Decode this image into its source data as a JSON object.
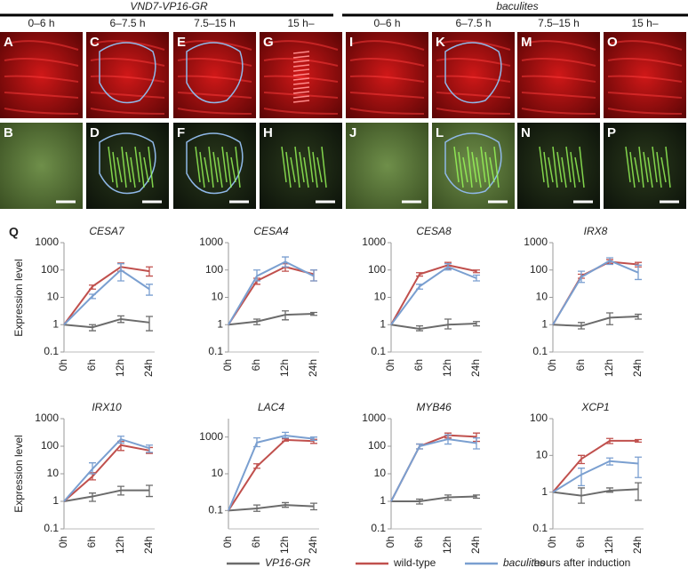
{
  "figure": {
    "groups": [
      "VND7-VP16-GR",
      "baculites"
    ],
    "times": [
      "0–6 h",
      "6–7.5 h",
      "7.5–15 h",
      "15 h–",
      "0–6 h",
      "6–7.5 h",
      "7.5–15 h",
      "15 h–"
    ],
    "top_letters": [
      "A",
      "C",
      "E",
      "G",
      "I",
      "K",
      "M",
      "O"
    ],
    "bottom_letters": [
      "B",
      "D",
      "F",
      "H",
      "J",
      "L",
      "N",
      "P"
    ],
    "q_letter": "Q"
  },
  "chart_data": {
    "type": "line",
    "log_y": true,
    "categories": [
      "0h",
      "6h",
      "12h",
      "24h"
    ],
    "ylabel": "Expression level",
    "xlabel": "hours after induction",
    "series": [
      {
        "name": "VP16-GR",
        "color": "#6b6b6b"
      },
      {
        "name": "wild-type",
        "color": "#c0504d"
      },
      {
        "name": "baculites",
        "color": "#7a9fd0"
      }
    ],
    "panels": [
      {
        "title": "CESA7",
        "ylim": [
          0.1,
          1000
        ],
        "yticks": [
          0.1,
          1,
          10,
          100,
          1000
        ],
        "values": [
          [
            1,
            0.8,
            1.6,
            1.2
          ],
          [
            1,
            25,
            130,
            90
          ],
          [
            1,
            11,
            100,
            20
          ]
        ],
        "lower": [
          [
            null,
            0.6,
            1.2,
            0.6
          ],
          [
            null,
            20,
            90,
            60
          ],
          [
            null,
            9,
            40,
            12
          ]
        ],
        "upper": [
          [
            null,
            1,
            2.1,
            2
          ],
          [
            null,
            28,
            180,
            130
          ],
          [
            null,
            13,
            170,
            30
          ]
        ]
      },
      {
        "title": "CESA4",
        "ylim": [
          0.1,
          1000
        ],
        "yticks": [
          0.1,
          1,
          10,
          100,
          1000
        ],
        "values": [
          [
            1,
            1.3,
            2.3,
            2.5
          ],
          [
            1,
            40,
            130,
            70
          ],
          [
            1,
            60,
            200,
            60
          ]
        ],
        "lower": [
          [
            null,
            1,
            1.5,
            2.2
          ],
          [
            null,
            30,
            90,
            40
          ],
          [
            null,
            40,
            130,
            40
          ]
        ],
        "upper": [
          [
            null,
            1.6,
            3.2,
            2.8
          ],
          [
            null,
            50,
            170,
            100
          ],
          [
            null,
            100,
            300,
            100
          ]
        ]
      },
      {
        "title": "CESA8",
        "ylim": [
          0.1,
          1000
        ],
        "yticks": [
          0.1,
          1,
          10,
          100,
          1000
        ],
        "values": [
          [
            1,
            0.7,
            1,
            1.1
          ],
          [
            1,
            70,
            150,
            90
          ],
          [
            1,
            25,
            130,
            50
          ]
        ],
        "lower": [
          [
            null,
            0.6,
            0.7,
            0.9
          ],
          [
            null,
            60,
            110,
            80
          ],
          [
            null,
            20,
            100,
            40
          ]
        ],
        "upper": [
          [
            null,
            0.9,
            1.6,
            1.3
          ],
          [
            null,
            80,
            190,
            100
          ],
          [
            null,
            30,
            170,
            65
          ]
        ]
      },
      {
        "title": "IRX8",
        "ylim": [
          0.1,
          1000
        ],
        "yticks": [
          0.1,
          1,
          10,
          100,
          1000
        ],
        "values": [
          [
            1,
            0.9,
            1.8,
            2
          ],
          [
            1,
            60,
            200,
            160
          ],
          [
            1,
            55,
            220,
            80
          ]
        ],
        "lower": [
          [
            null,
            0.7,
            1,
            1.6
          ],
          [
            null,
            50,
            170,
            130
          ],
          [
            null,
            35,
            160,
            45
          ]
        ],
        "upper": [
          [
            null,
            1.2,
            2.7,
            2.4
          ],
          [
            null,
            70,
            240,
            190
          ],
          [
            null,
            90,
            280,
            150
          ]
        ]
      },
      {
        "title": "IRX10",
        "ylim": [
          0.1,
          1000
        ],
        "yticks": [
          0.1,
          1,
          10,
          100,
          1000
        ],
        "values": [
          [
            1,
            1.5,
            2.5,
            2.5
          ],
          [
            1,
            8,
            110,
            70
          ],
          [
            1,
            15,
            180,
            85
          ]
        ],
        "lower": [
          [
            null,
            1,
            1.7,
            1.5
          ],
          [
            null,
            6,
            70,
            55
          ],
          [
            null,
            10,
            130,
            60
          ]
        ],
        "upper": [
          [
            null,
            2,
            3.5,
            3.8
          ],
          [
            null,
            11,
            150,
            90
          ],
          [
            null,
            25,
            230,
            110
          ]
        ]
      },
      {
        "title": "LAC4",
        "ylim": [
          0.01,
          10000
        ],
        "yticks": [
          0.1,
          10,
          1000
        ],
        "values": [
          [
            0.1,
            0.13,
            0.2,
            0.17
          ],
          [
            0.1,
            25,
            700,
            600
          ],
          [
            0.1,
            500,
            1200,
            800
          ]
        ],
        "lower": [
          [
            null,
            0.09,
            0.15,
            0.11
          ],
          [
            null,
            20,
            600,
            450
          ],
          [
            null,
            300,
            900,
            650
          ]
        ],
        "upper": [
          [
            null,
            0.2,
            0.27,
            0.25
          ],
          [
            null,
            35,
            800,
            750
          ],
          [
            null,
            900,
            1800,
            1000
          ]
        ]
      },
      {
        "title": "MYB46",
        "ylim": [
          0.1,
          1000
        ],
        "yticks": [
          0.1,
          1,
          10,
          100,
          1000
        ],
        "values": [
          [
            1,
            1,
            1.4,
            1.5
          ],
          [
            1,
            100,
            250,
            220
          ],
          [
            1,
            100,
            180,
            130
          ]
        ],
        "lower": [
          [
            null,
            0.8,
            1.1,
            1.3
          ],
          [
            null,
            80,
            200,
            150
          ],
          [
            null,
            80,
            120,
            80
          ]
        ],
        "upper": [
          [
            null,
            1.2,
            1.7,
            1.7
          ],
          [
            null,
            120,
            300,
            300
          ],
          [
            null,
            120,
            260,
            200
          ]
        ]
      },
      {
        "title": "XCP1",
        "ylim": [
          0.1,
          100
        ],
        "yticks": [
          0.1,
          1,
          10,
          100
        ],
        "values": [
          [
            1,
            0.8,
            1.1,
            1.2
          ],
          [
            1,
            8,
            25,
            25
          ],
          [
            1,
            3,
            7,
            6
          ]
        ],
        "lower": [
          [
            null,
            0.5,
            1,
            0.6
          ],
          [
            null,
            6,
            21,
            23
          ],
          [
            null,
            1.5,
            5.5,
            2.5
          ]
        ],
        "upper": [
          [
            null,
            1.3,
            1.3,
            1.8
          ],
          [
            null,
            10,
            29,
            27
          ],
          [
            null,
            4.5,
            8.5,
            9
          ]
        ]
      }
    ]
  }
}
